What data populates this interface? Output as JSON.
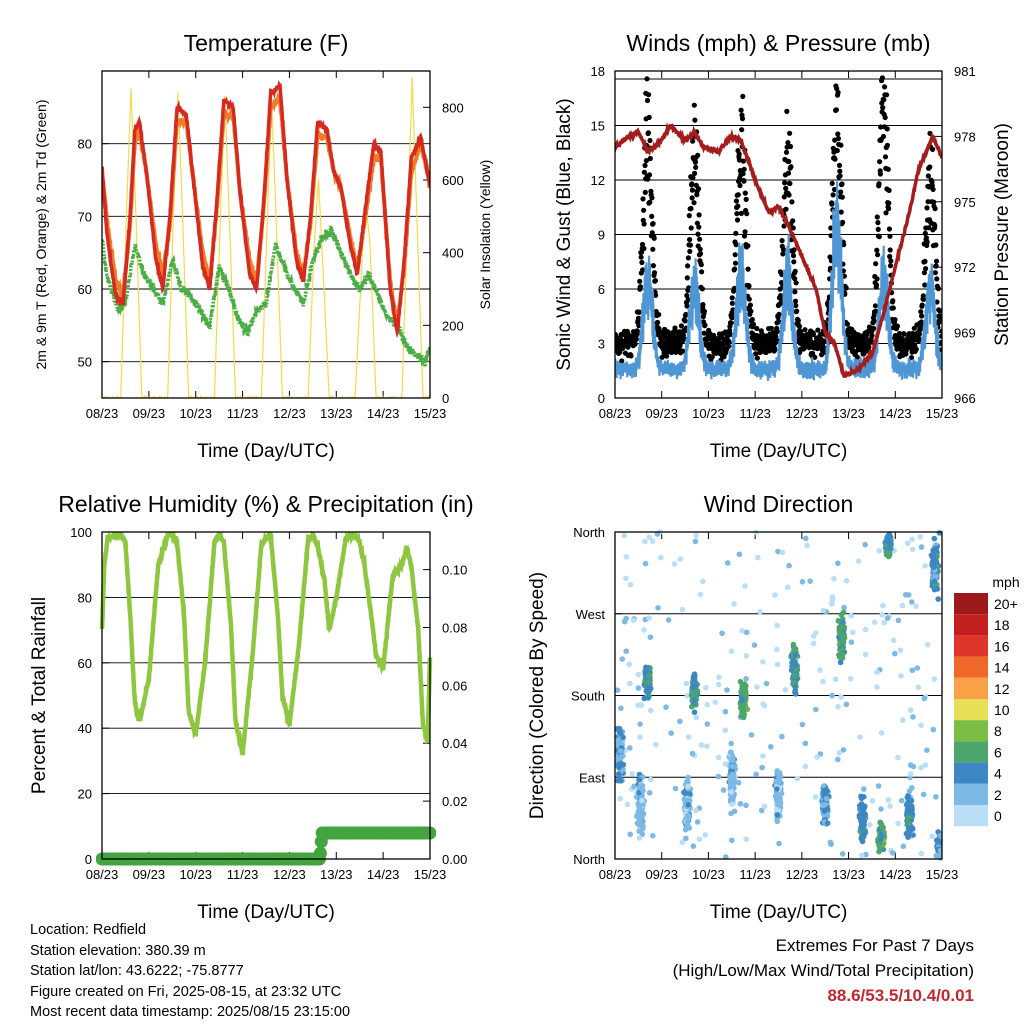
{
  "colors": {
    "temp_2m": "#d42a20",
    "temp_9m": "#f07c2a",
    "dewpoint": "#4aae45",
    "solar": "#f5d94a",
    "wind": "#4f97d4",
    "gust": "#000000",
    "pressure": "#a41c1c",
    "rh": "#8dc63f",
    "precip": "#44a540",
    "grid": "#000000"
  },
  "x_ticks": [
    "08/23",
    "09/23",
    "10/23",
    "11/23",
    "12/23",
    "13/23",
    "14/23",
    "15/23"
  ],
  "x_label": "Time (Day/UTC)",
  "chart_data": [
    {
      "id": "temperature",
      "type": "line",
      "title": "Temperature (F)",
      "xlabel": "Time (Day/UTC)",
      "ylabel": "2m & 9m T (Red, Orange) & 2m Td (Green)",
      "y2label": "Solar Insolation (Yellow)",
      "ylim": [
        45,
        90
      ],
      "y_ticks": [
        50,
        60,
        70,
        80
      ],
      "y2lim": [
        0,
        900
      ],
      "y2_ticks": [
        0,
        200,
        400,
        600,
        800
      ],
      "x_days": [
        8,
        15
      ],
      "series": [
        {
          "name": "2m T",
          "color_key": "temp_2m",
          "x": [
            8.0,
            8.1,
            8.2,
            8.3,
            8.45,
            8.6,
            8.7,
            8.8,
            8.95,
            9.15,
            9.3,
            9.45,
            9.6,
            9.8,
            9.95,
            10.15,
            10.3,
            10.45,
            10.6,
            10.8,
            10.95,
            11.15,
            11.3,
            11.45,
            11.6,
            11.8,
            11.95,
            12.15,
            12.3,
            12.45,
            12.6,
            12.8,
            12.95,
            13.1,
            13.3,
            13.45,
            13.6,
            13.8,
            13.95,
            14.15,
            14.3,
            14.45,
            14.6,
            14.8,
            14.95,
            15.0
          ],
          "y": [
            77,
            68,
            63,
            59,
            58,
            70,
            82,
            83,
            76,
            64,
            60,
            70,
            85,
            84,
            75,
            63,
            60,
            72,
            86,
            85,
            73,
            62,
            60,
            72,
            87,
            88,
            75,
            64,
            61,
            70,
            83,
            82,
            76,
            74,
            66,
            62,
            70,
            80,
            79,
            60,
            54,
            64,
            78,
            81,
            76,
            74
          ]
        },
        {
          "name": "9m T",
          "color_key": "temp_9m",
          "x": [
            8.0,
            8.1,
            8.2,
            8.3,
            8.45,
            8.6,
            8.7,
            8.8,
            8.95,
            9.15,
            9.3,
            9.45,
            9.6,
            9.8,
            9.95,
            10.15,
            10.3,
            10.45,
            10.6,
            10.8,
            10.95,
            11.15,
            11.3,
            11.45,
            11.6,
            11.8,
            11.95,
            12.15,
            12.3,
            12.45,
            12.6,
            12.8,
            12.95,
            13.1,
            13.3,
            13.45,
            13.6,
            13.8,
            13.95,
            14.15,
            14.3,
            14.45,
            14.6,
            14.8,
            14.95,
            15.0
          ],
          "y": [
            76,
            70,
            65,
            61,
            59,
            69,
            80,
            82,
            76,
            66,
            62,
            69,
            83,
            83,
            75,
            65,
            61,
            71,
            84,
            84,
            73,
            64,
            61,
            71,
            85,
            86,
            75,
            65,
            62,
            69,
            81,
            81,
            76,
            74,
            67,
            63,
            69,
            78,
            78,
            61,
            55,
            63,
            76,
            80,
            76,
            74
          ]
        },
        {
          "name": "2m Td",
          "color_key": "dewpoint",
          "x": [
            8.0,
            8.1,
            8.2,
            8.35,
            8.5,
            8.7,
            8.9,
            9.1,
            9.3,
            9.5,
            9.7,
            9.9,
            10.1,
            10.3,
            10.5,
            10.7,
            10.9,
            11.1,
            11.3,
            11.5,
            11.7,
            11.9,
            12.1,
            12.3,
            12.5,
            12.7,
            12.9,
            13.1,
            13.3,
            13.5,
            13.7,
            13.9,
            14.1,
            14.3,
            14.5,
            14.7,
            14.9,
            15.0
          ],
          "y": [
            67,
            62,
            60,
            57,
            58,
            66,
            62,
            60,
            58,
            64,
            60,
            59,
            57,
            55,
            63,
            60,
            56,
            54,
            57,
            58,
            66,
            63,
            60,
            58,
            64,
            67,
            68,
            65,
            62,
            60,
            62,
            59,
            56,
            55,
            52,
            51,
            50,
            52
          ]
        },
        {
          "name": "Solar Insolation",
          "color_key": "solar",
          "axis": "y2",
          "x": [
            8.0,
            8.4,
            8.52,
            8.62,
            8.72,
            8.85,
            9.4,
            9.52,
            9.62,
            9.72,
            9.85,
            10.4,
            10.52,
            10.62,
            10.72,
            10.85,
            11.4,
            11.52,
            11.62,
            11.72,
            11.85,
            12.4,
            12.52,
            12.62,
            12.72,
            12.85,
            13.4,
            13.52,
            13.62,
            13.72,
            13.85,
            14.4,
            14.52,
            14.62,
            14.72,
            14.85,
            15.0
          ],
          "y": [
            0,
            0,
            500,
            850,
            520,
            0,
            0,
            480,
            840,
            500,
            0,
            0,
            470,
            830,
            490,
            0,
            0,
            460,
            820,
            480,
            0,
            0,
            400,
            600,
            350,
            0,
            0,
            300,
            550,
            420,
            0,
            0,
            480,
            880,
            500,
            0,
            0
          ]
        }
      ]
    },
    {
      "id": "winds",
      "type": "scatter",
      "title": "Winds (mph) & Pressure (mb)",
      "xlabel": "Time (Day/UTC)",
      "ylabel": "Sonic Wind & Gust (Blue, Black)",
      "y2label": "Station Pressure (Maroon)",
      "ylim": [
        0,
        18
      ],
      "y_ticks": [
        0,
        3,
        6,
        9,
        12,
        15,
        18
      ],
      "y2lim": [
        966,
        981
      ],
      "y2_ticks": [
        966,
        969,
        972,
        975,
        978,
        981
      ],
      "x_days": [
        8,
        15
      ],
      "wind_peaks": [
        {
          "x": 8.7,
          "wind": 6.5,
          "gust": 14
        },
        {
          "x": 9.7,
          "wind": 6.2,
          "gust": 13
        },
        {
          "x": 10.7,
          "wind": 6.8,
          "gust": 14
        },
        {
          "x": 11.7,
          "wind": 6.6,
          "gust": 13
        },
        {
          "x": 12.75,
          "wind": 9.5,
          "gust": 15
        },
        {
          "x": 13.75,
          "wind": 6.5,
          "gust": 16
        },
        {
          "x": 14.75,
          "wind": 6.0,
          "gust": 12
        }
      ],
      "pressure": {
        "name": "Station Pressure",
        "color_key": "pressure",
        "x": [
          8.0,
          8.3,
          8.5,
          8.7,
          8.9,
          9.2,
          9.5,
          9.7,
          9.9,
          10.2,
          10.5,
          10.7,
          11.0,
          11.3,
          11.5,
          11.8,
          12.0,
          12.3,
          12.5,
          12.7,
          12.9,
          13.2,
          13.5,
          13.7,
          14.0,
          14.3,
          14.5,
          14.8,
          15.0
        ],
        "y": [
          977.5,
          978.0,
          978.2,
          977.3,
          977.6,
          978.5,
          977.8,
          978.2,
          977.5,
          977.3,
          978.0,
          977.8,
          976.0,
          974.5,
          974.8,
          973.5,
          972.5,
          971.0,
          969.0,
          968.5,
          967.0,
          967.3,
          968.0,
          969.5,
          972.0,
          974.5,
          976.5,
          978.0,
          977.0
        ]
      }
    },
    {
      "id": "humidity",
      "type": "line",
      "title": "Relative Humidity (%) & Precipitation (in)",
      "xlabel": "Time (Day/UTC)",
      "ylabel": "Percent & Total Rainfall",
      "ylim": [
        0,
        100
      ],
      "y_ticks": [
        0,
        20,
        40,
        60,
        80,
        100
      ],
      "y2lim": [
        0,
        0.113
      ],
      "y2_ticks": [
        "0.00",
        "0.02",
        "0.04",
        "0.06",
        "0.08",
        "0.10"
      ],
      "y2_tick_values": [
        0,
        0.02,
        0.04,
        0.06,
        0.08,
        0.1
      ],
      "x_days": [
        8,
        15
      ],
      "series": [
        {
          "name": "Relative Humidity",
          "color_key": "rh",
          "x": [
            8.0,
            8.05,
            8.12,
            8.25,
            8.4,
            8.5,
            8.6,
            8.7,
            8.8,
            9.0,
            9.2,
            9.4,
            9.5,
            9.6,
            9.75,
            9.85,
            10.0,
            10.2,
            10.4,
            10.5,
            10.6,
            10.75,
            10.85,
            11.0,
            11.2,
            11.4,
            11.5,
            11.6,
            11.75,
            11.85,
            12.0,
            12.2,
            12.4,
            12.5,
            12.6,
            12.75,
            12.85,
            13.0,
            13.2,
            13.4,
            13.5,
            13.6,
            13.75,
            13.85,
            14.0,
            14.2,
            14.4,
            14.5,
            14.6,
            14.75,
            14.85,
            14.95,
            15.0
          ],
          "y": [
            70,
            90,
            98,
            99,
            99,
            97,
            75,
            48,
            42,
            55,
            90,
            99,
            99,
            97,
            75,
            45,
            38,
            60,
            97,
            99,
            97,
            72,
            42,
            32,
            60,
            96,
            98,
            99,
            75,
            50,
            41,
            65,
            98,
            99,
            96,
            85,
            70,
            80,
            98,
            99,
            97,
            90,
            74,
            62,
            58,
            86,
            90,
            95,
            90,
            70,
            41,
            36,
            62
          ]
        },
        {
          "name": "Total Rainfall",
          "color_key": "precip",
          "axis": "y2",
          "x": [
            8.0,
            12.65,
            12.68,
            12.7,
            15.0
          ],
          "y": [
            0.0,
            0.0,
            0.006,
            0.009,
            0.009
          ]
        }
      ]
    },
    {
      "id": "wind_direction",
      "type": "scatter",
      "title": "Wind Direction",
      "xlabel": "Time (Day/UTC)",
      "ylabel": "Direction (Colored By Speed)",
      "y_ticks": [
        "North",
        "East",
        "South",
        "West",
        "North"
      ],
      "y_tick_values": [
        0,
        90,
        180,
        270,
        360
      ],
      "ylim": [
        0,
        360
      ],
      "x_days": [
        8,
        15
      ],
      "direction_clusters": [
        {
          "x": 8.1,
          "dir": 120,
          "spread": 40,
          "speed": 3
        },
        {
          "x": 8.55,
          "dir": 60,
          "spread": 40,
          "speed": 2
        },
        {
          "x": 8.7,
          "dir": 195,
          "spread": 25,
          "speed": 5
        },
        {
          "x": 9.55,
          "dir": 60,
          "spread": 40,
          "speed": 2
        },
        {
          "x": 9.7,
          "dir": 185,
          "spread": 25,
          "speed": 5
        },
        {
          "x": 10.5,
          "dir": 90,
          "spread": 50,
          "speed": 2
        },
        {
          "x": 10.75,
          "dir": 175,
          "spread": 25,
          "speed": 6
        },
        {
          "x": 11.5,
          "dir": 70,
          "spread": 40,
          "speed": 2
        },
        {
          "x": 11.85,
          "dir": 210,
          "spread": 35,
          "speed": 5
        },
        {
          "x": 12.5,
          "dir": 60,
          "spread": 30,
          "speed": 3
        },
        {
          "x": 12.85,
          "dir": 245,
          "spread": 30,
          "speed": 6
        },
        {
          "x": 13.3,
          "dir": 45,
          "spread": 35,
          "speed": 4
        },
        {
          "x": 13.7,
          "dir": 25,
          "spread": 20,
          "speed": 6
        },
        {
          "x": 13.85,
          "dir": 345,
          "spread": 15,
          "speed": 5
        },
        {
          "x": 14.3,
          "dir": 50,
          "spread": 35,
          "speed": 4
        },
        {
          "x": 14.85,
          "dir": 320,
          "spread": 40,
          "speed": 4
        },
        {
          "x": 14.95,
          "dir": 15,
          "spread": 20,
          "speed": 3
        }
      ],
      "legend": {
        "title": "mph",
        "labels": [
          "20+",
          "18",
          "16",
          "14",
          "12",
          "10",
          "8",
          "6",
          "4",
          "2",
          "0"
        ],
        "colors": [
          "#9c1a1c",
          "#c1201f",
          "#e0352a",
          "#f0672a",
          "#f9a245",
          "#e7df56",
          "#7cbd43",
          "#4ca66b",
          "#3d87c5",
          "#7cb9e5",
          "#b9def6"
        ]
      }
    }
  ],
  "station": {
    "location": "Location: Redfield",
    "elevation": "Station elevation: 380.39 m",
    "latlon": "Station lat/lon: 43.6222; -75.8777",
    "created": "Figure created on Fri, 2025-08-15, at 23:32 UTC",
    "recent": "Most recent data timestamp: 2025/08/15 23:15:00"
  },
  "extremes": {
    "title": "Extremes For Past 7 Days",
    "subtitle": "(High/Low/Max Wind/Total Precipitation)",
    "values": "88.6/53.5/10.4/0.01"
  }
}
